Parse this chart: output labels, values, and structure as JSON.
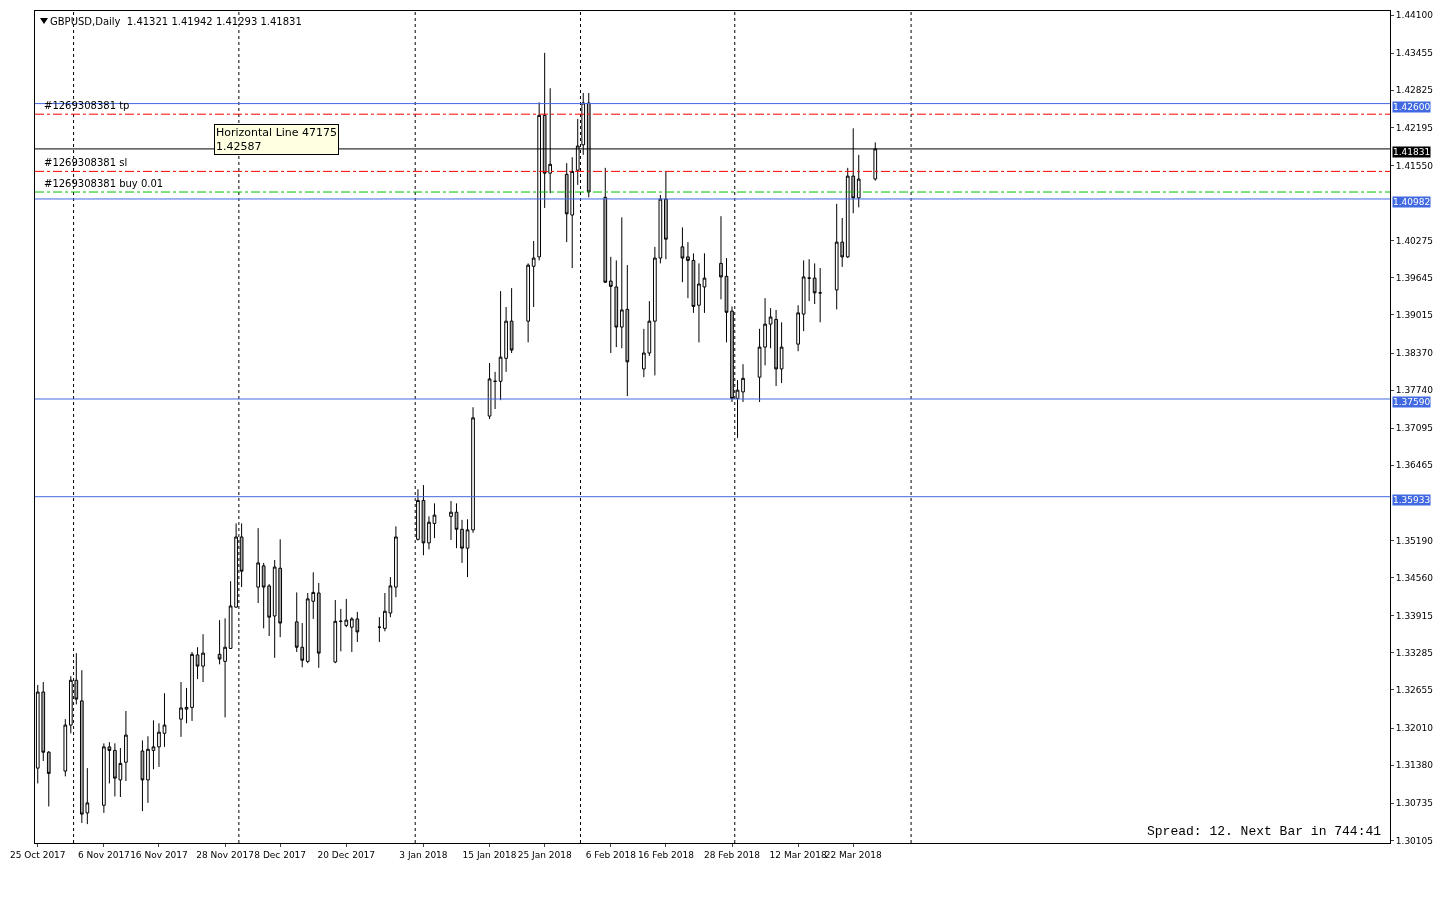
{
  "chart_data": {
    "type": "candlestick",
    "title": "GBPUSD,Daily  1.41321 1.41942 1.41293 1.41831",
    "x": [
      "2017-10-25",
      "2017-10-26",
      "2017-10-27",
      "2017-10-30",
      "2017-10-31",
      "2017-11-01",
      "2017-11-02",
      "2017-11-03",
      "2017-11-06",
      "2017-11-07",
      "2017-11-08",
      "2017-11-09",
      "2017-11-10",
      "2017-11-13",
      "2017-11-14",
      "2017-11-15",
      "2017-11-16",
      "2017-11-17",
      "2017-11-20",
      "2017-11-21",
      "2017-11-22",
      "2017-11-23",
      "2017-11-24",
      "2017-11-27",
      "2017-11-28",
      "2017-11-29",
      "2017-11-30",
      "2017-12-01",
      "2017-12-04",
      "2017-12-05",
      "2017-12-06",
      "2017-12-07",
      "2017-12-08",
      "2017-12-11",
      "2017-12-12",
      "2017-12-13",
      "2017-12-14",
      "2017-12-15",
      "2017-12-18",
      "2017-12-19",
      "2017-12-20",
      "2017-12-21",
      "2017-12-22",
      "2017-12-26",
      "2017-12-27",
      "2017-12-28",
      "2017-12-29",
      "2018-01-02",
      "2018-01-03",
      "2018-01-04",
      "2018-01-05",
      "2018-01-08",
      "2018-01-09",
      "2018-01-10",
      "2018-01-11",
      "2018-01-12",
      "2018-01-15",
      "2018-01-16",
      "2018-01-17",
      "2018-01-18",
      "2018-01-19",
      "2018-01-22",
      "2018-01-23",
      "2018-01-24",
      "2018-01-25",
      "2018-01-26",
      "2018-01-29",
      "2018-01-30",
      "2018-01-31",
      "2018-02-01",
      "2018-02-02",
      "2018-02-05",
      "2018-02-06",
      "2018-02-07",
      "2018-02-08",
      "2018-02-09",
      "2018-02-12",
      "2018-02-13",
      "2018-02-14",
      "2018-02-15",
      "2018-02-16",
      "2018-02-19",
      "2018-02-20",
      "2018-02-21",
      "2018-02-22",
      "2018-02-23",
      "2018-02-26",
      "2018-02-27",
      "2018-02-28",
      "2018-03-01",
      "2018-03-02",
      "2018-03-05",
      "2018-03-06",
      "2018-03-07",
      "2018-03-08",
      "2018-03-09",
      "2018-03-12",
      "2018-03-13",
      "2018-03-14",
      "2018-03-15",
      "2018-03-16",
      "2018-03-19",
      "2018-03-20",
      "2018-03-21",
      "2018-03-22",
      "2018-03-23",
      "2018-03-26"
    ],
    "ohlc": [
      [
        1.3133,
        1.3274,
        1.3107,
        1.3262
      ],
      [
        1.3262,
        1.3279,
        1.3145,
        1.316
      ],
      [
        1.316,
        1.3162,
        1.3068,
        1.3124
      ],
      [
        1.3128,
        1.3216,
        1.3119,
        1.3206
      ],
      [
        1.3206,
        1.3289,
        1.3192,
        1.3282
      ],
      [
        1.3282,
        1.3328,
        1.3241,
        1.325
      ],
      [
        1.3247,
        1.3299,
        1.304,
        1.3055
      ],
      [
        1.3057,
        1.3133,
        1.3038,
        1.3074
      ],
      [
        1.307,
        1.3175,
        1.3057,
        1.3169
      ],
      [
        1.3169,
        1.3177,
        1.3107,
        1.3163
      ],
      [
        1.3163,
        1.3175,
        1.3085,
        1.3116
      ],
      [
        1.3113,
        1.3167,
        1.3084,
        1.3141
      ],
      [
        1.3143,
        1.323,
        1.3111,
        1.3189
      ],
      [
        1.3162,
        1.318,
        1.306,
        1.3113
      ],
      [
        1.3113,
        1.3187,
        1.3074,
        1.3165
      ],
      [
        1.3163,
        1.3214,
        1.3131,
        1.3169
      ],
      [
        1.3169,
        1.3209,
        1.3135,
        1.3194
      ],
      [
        1.3192,
        1.326,
        1.3169,
        1.3206
      ],
      [
        1.3216,
        1.3279,
        1.3186,
        1.3235
      ],
      [
        1.3233,
        1.3269,
        1.3209,
        1.3236
      ],
      [
        1.3236,
        1.333,
        1.3213,
        1.3326
      ],
      [
        1.3325,
        1.3338,
        1.3284,
        1.3306
      ],
      [
        1.3306,
        1.336,
        1.3279,
        1.3328
      ],
      [
        1.3326,
        1.3384,
        1.3309,
        1.3318
      ],
      [
        1.3314,
        1.3387,
        1.3219,
        1.3338
      ],
      [
        1.3336,
        1.345,
        1.3335,
        1.3408
      ],
      [
        1.3406,
        1.3548,
        1.3405,
        1.3525
      ],
      [
        1.3525,
        1.3548,
        1.344,
        1.3467
      ],
      [
        1.344,
        1.354,
        1.3413,
        1.3481
      ],
      [
        1.3476,
        1.3481,
        1.337,
        1.344
      ],
      [
        1.3442,
        1.3445,
        1.3357,
        1.3389
      ],
      [
        1.3391,
        1.3486,
        1.332,
        1.3474
      ],
      [
        1.3472,
        1.3521,
        1.3355,
        1.3379
      ],
      [
        1.3381,
        1.3431,
        1.333,
        1.3338
      ],
      [
        1.3338,
        1.3379,
        1.3304,
        1.3316
      ],
      [
        1.3314,
        1.343,
        1.3311,
        1.342
      ],
      [
        1.3416,
        1.3465,
        1.3386,
        1.3431
      ],
      [
        1.343,
        1.3447,
        1.3303,
        1.3328
      ],
      [
        1.3313,
        1.3418,
        1.3311,
        1.3382
      ],
      [
        1.3382,
        1.3403,
        1.3331,
        1.3382
      ],
      [
        1.3375,
        1.342,
        1.3372,
        1.3384
      ],
      [
        1.3372,
        1.3389,
        1.333,
        1.3386
      ],
      [
        1.3386,
        1.3398,
        1.3347,
        1.3364
      ],
      [
        1.3372,
        1.3389,
        1.3347,
        1.3372
      ],
      [
        1.337,
        1.343,
        1.3365,
        1.3399
      ],
      [
        1.3396,
        1.3457,
        1.3389,
        1.3442
      ],
      [
        1.344,
        1.3543,
        1.3423,
        1.3525
      ],
      [
        1.3521,
        1.3606,
        1.3519,
        1.3587
      ],
      [
        1.3587,
        1.3613,
        1.3494,
        1.3515
      ],
      [
        1.3515,
        1.356,
        1.3504,
        1.355
      ],
      [
        1.3548,
        1.3582,
        1.3523,
        1.3562
      ],
      [
        1.356,
        1.3586,
        1.352,
        1.3567
      ],
      [
        1.3567,
        1.3582,
        1.3506,
        1.3538
      ],
      [
        1.3538,
        1.3554,
        1.3481,
        1.3506
      ],
      [
        1.3506,
        1.3555,
        1.3457,
        1.3537
      ],
      [
        1.3537,
        1.3745,
        1.3532,
        1.3727
      ],
      [
        1.373,
        1.382,
        1.3725,
        1.3793
      ],
      [
        1.3789,
        1.3805,
        1.3742,
        1.3789
      ],
      [
        1.3789,
        1.3942,
        1.3757,
        1.383
      ],
      [
        1.3828,
        1.3915,
        1.3805,
        1.3891
      ],
      [
        1.3891,
        1.3947,
        1.3837,
        1.3842
      ],
      [
        1.3891,
        1.3989,
        1.3855,
        1.3986
      ],
      [
        1.3984,
        1.4027,
        1.3915,
        1.3998
      ],
      [
        1.4,
        1.4262,
        1.3994,
        1.424
      ],
      [
        1.424,
        1.4346,
        1.4083,
        1.4142
      ],
      [
        1.4142,
        1.4286,
        1.4108,
        1.4157
      ],
      [
        1.414,
        1.4159,
        1.4025,
        1.4073
      ],
      [
        1.4071,
        1.4169,
        1.3981,
        1.4145
      ],
      [
        1.4147,
        1.4234,
        1.4122,
        1.4188
      ],
      [
        1.419,
        1.4278,
        1.4173,
        1.4261
      ],
      [
        1.4261,
        1.4278,
        1.4101,
        1.411
      ],
      [
        1.4101,
        1.4151,
        1.3956,
        1.3957
      ],
      [
        1.3959,
        1.4,
        1.3837,
        1.395
      ],
      [
        1.3949,
        1.3994,
        1.3847,
        1.3881
      ],
      [
        1.3881,
        1.4067,
        1.3845,
        1.391
      ],
      [
        1.3911,
        1.3986,
        1.3764,
        1.3822
      ],
      [
        1.381,
        1.3878,
        1.3796,
        1.3837
      ],
      [
        1.3837,
        1.3925,
        1.3832,
        1.3891
      ],
      [
        1.3891,
        1.4017,
        1.3799,
        1.3998
      ],
      [
        1.3998,
        1.4105,
        1.3989,
        1.4098
      ],
      [
        1.4098,
        1.4145,
        1.3996,
        1.403
      ],
      [
        1.4017,
        1.405,
        1.3957,
        1.3998
      ],
      [
        1.4,
        1.4025,
        1.393,
        1.3994
      ],
      [
        1.3994,
        1.4006,
        1.3905,
        1.3916
      ],
      [
        1.3918,
        1.3989,
        1.3855,
        1.3954
      ],
      [
        1.3949,
        1.4006,
        1.3905,
        1.3964
      ],
      [
        1.3989,
        1.4069,
        1.3928,
        1.3966
      ],
      [
        1.3967,
        1.3998,
        1.3855,
        1.3906
      ],
      [
        1.3908,
        1.3916,
        1.3754,
        1.376
      ],
      [
        1.376,
        1.3791,
        1.3693,
        1.3774
      ],
      [
        1.3771,
        1.3818,
        1.3754,
        1.3794
      ],
      [
        1.3796,
        1.3878,
        1.3754,
        1.3847
      ],
      [
        1.3847,
        1.393,
        1.3816,
        1.3886
      ],
      [
        1.3886,
        1.3913,
        1.3845,
        1.3898
      ],
      [
        1.3894,
        1.391,
        1.3781,
        1.381
      ],
      [
        1.381,
        1.3889,
        1.3786,
        1.3847
      ],
      [
        1.3852,
        1.3918,
        1.384,
        1.3905
      ],
      [
        1.3903,
        1.3994,
        1.3874,
        1.3966
      ],
      [
        1.3964,
        1.3996,
        1.3925,
        1.3964
      ],
      [
        1.3964,
        1.3989,
        1.392,
        1.3939
      ],
      [
        1.3939,
        1.3981,
        1.3889,
        1.3939
      ],
      [
        1.3944,
        1.409,
        1.3911,
        1.4025
      ],
      [
        1.4025,
        1.4066,
        1.3983,
        1.4
      ],
      [
        1.4,
        1.4151,
        1.3998,
        1.4137
      ],
      [
        1.4137,
        1.4218,
        1.4074,
        1.41
      ],
      [
        1.41,
        1.4173,
        1.4084,
        1.4132
      ],
      [
        1.41321,
        1.41942,
        1.41293,
        1.41831
      ]
    ],
    "xlim": [
      "2017-10-24T12:00",
      "2018-06-27T10:00"
    ],
    "xticks": [
      {
        "value": "2017-10-25",
        "label": "25 Oct 2017"
      },
      {
        "value": "2017-11-06",
        "label": "6 Nov 2017"
      },
      {
        "value": "2017-11-16",
        "label": "16 Nov 2017"
      },
      {
        "value": "2017-11-28",
        "label": "28 Nov 2017"
      },
      {
        "value": "2017-12-08",
        "label": "8 Dec 2017"
      },
      {
        "value": "2017-12-20",
        "label": "20 Dec 2017"
      },
      {
        "value": "2018-01-03",
        "label": "3 Jan 2018"
      },
      {
        "value": "2018-01-15",
        "label": "15 Jan 2018"
      },
      {
        "value": "2018-01-25",
        "label": "25 Jan 2018"
      },
      {
        "value": "2018-02-06",
        "label": "6 Feb 2018"
      },
      {
        "value": "2018-02-16",
        "label": "16 Feb 2018"
      },
      {
        "value": "2018-02-28",
        "label": "28 Feb 2018"
      },
      {
        "value": "2018-03-12",
        "label": "12 Mar 2018"
      },
      {
        "value": "2018-03-22",
        "label": "22 Mar 2018"
      }
    ],
    "ylim": [
      1.3006,
      1.4417
    ],
    "yticks": [
      {
        "value": 1.441,
        "label": "1.44100"
      },
      {
        "value": 1.43455,
        "label": "1.43455"
      },
      {
        "value": 1.42825,
        "label": "1.42825"
      },
      {
        "value": 1.42195,
        "label": "1.42195"
      },
      {
        "value": 1.4155,
        "label": "1.41550"
      },
      {
        "value": 1.40275,
        "label": "1.40275"
      },
      {
        "value": 1.39645,
        "label": "1.39645"
      },
      {
        "value": 1.39015,
        "label": "1.39015"
      },
      {
        "value": 1.3837,
        "label": "1.38370"
      },
      {
        "value": 1.3774,
        "label": "1.37740"
      },
      {
        "value": 1.37095,
        "label": "1.37095"
      },
      {
        "value": 1.36465,
        "label": "1.36465"
      },
      {
        "value": 1.3519,
        "label": "1.35190"
      },
      {
        "value": 1.3456,
        "label": "1.34560"
      },
      {
        "value": 1.33915,
        "label": "1.33915"
      },
      {
        "value": 1.33285,
        "label": "1.33285"
      },
      {
        "value": 1.32655,
        "label": "1.32655"
      },
      {
        "value": 1.3201,
        "label": "1.32010"
      },
      {
        "value": 1.3138,
        "label": "1.31380"
      },
      {
        "value": 1.30735,
        "label": "1.30735"
      },
      {
        "value": 1.30105,
        "label": "1.30105"
      }
    ],
    "ref_lines": [
      {
        "axis": "y",
        "value": 1.426,
        "label": "1.42600",
        "color": "#4169e1",
        "line_style": "solid"
      },
      {
        "axis": "y",
        "value": 1.41831,
        "label": "1.41831",
        "color": "#000000",
        "line_style": "solid"
      },
      {
        "axis": "y",
        "value": 1.40982,
        "label": "1.40982",
        "color": "#4169e1",
        "line_style": "solid"
      },
      {
        "axis": "y",
        "value": 1.3759,
        "label": "1.37590",
        "color": "#4169e1",
        "line_style": "solid"
      },
      {
        "axis": "y",
        "value": 1.35933,
        "label": "1.35933",
        "color": "#4169e1",
        "line_style": "solid"
      },
      {
        "axis": "y",
        "value": 1.4242,
        "label": "#1269308381 tp",
        "color": "#ff0000",
        "line_style": "dashed"
      },
      {
        "axis": "y",
        "value": 1.4145,
        "label": "#1269308381 sl",
        "color": "#ff0000",
        "line_style": "dashed"
      },
      {
        "axis": "y",
        "value": 1.411,
        "label": "#1269308381 buy 0.01",
        "color": "#00c000",
        "line_style": "dashed"
      },
      {
        "axis": "x",
        "value": "2017-10-31T12:00",
        "color": "#000000",
        "line_style": "dotted"
      },
      {
        "axis": "x",
        "value": "2017-11-30T12:00",
        "color": "#000000",
        "line_style": "dotted"
      },
      {
        "axis": "x",
        "value": "2018-01-01T12:00",
        "color": "#000000",
        "line_style": "dotted"
      },
      {
        "axis": "x",
        "value": "2018-01-31T12:00",
        "color": "#000000",
        "line_style": "dotted"
      },
      {
        "axis": "x",
        "value": "2018-02-28T12:00",
        "color": "#000000",
        "line_style": "dotted"
      },
      {
        "axis": "x",
        "value": "2018-04-01T12:00",
        "color": "#000000",
        "line_style": "dotted"
      }
    ],
    "annotations": [
      "Horizontal Line 47175\n1.42587",
      "Spread: 12. Next Bar in 744:41"
    ],
    "grid": false,
    "legend": false
  }
}
